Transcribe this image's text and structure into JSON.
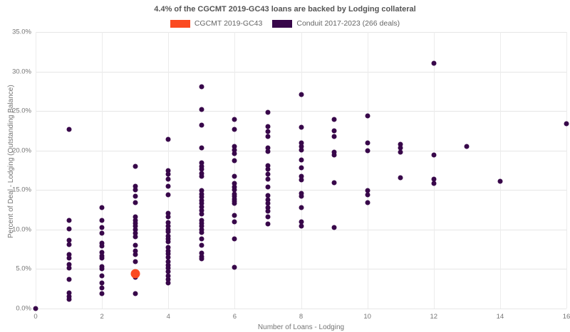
{
  "title": "4.4% of the CGCMT 2019-GC43 loans are backed by Lodging collateral",
  "legend": {
    "items": [
      {
        "label": "CGCMT 2019-GC43",
        "color": "#fb4a21"
      },
      {
        "label": "Conduit 2017-2023 (266 deals)",
        "color": "#38074a"
      }
    ]
  },
  "colors": {
    "highlight_orange": "#fb4a21",
    "conduit_purple": "#38074a",
    "title_text": "#555555",
    "axis_text": "#757575",
    "gridline": "#e6e6e6"
  },
  "chart_data": {
    "type": "scatter",
    "title": "4.4% of the CGCMT 2019-GC43 loans are backed by Lodging collateral",
    "xlabel": "Number of Loans - Lodging",
    "ylabel": "Percent of Deal - Lodging (Outstanding Balance)",
    "xlim": [
      0,
      16
    ],
    "ylim": [
      0,
      35
    ],
    "x_ticks": [
      0,
      2,
      4,
      6,
      8,
      10,
      12,
      14,
      16
    ],
    "x_tick_labels": [
      "0",
      "2",
      "4",
      "6",
      "8",
      "10",
      "12",
      "14",
      "16"
    ],
    "y_ticks": [
      0,
      5,
      10,
      15,
      20,
      25,
      30,
      35
    ],
    "y_tick_labels": [
      "0.0%",
      "5.0%",
      "10.0%",
      "15.0%",
      "20.0%",
      "25.0%",
      "30.0%",
      "35.0%"
    ],
    "grid": true,
    "legend_position": "top-center",
    "series": [
      {
        "name": "Conduit 2017-2023 (266 deals)",
        "color": "#38074a",
        "marker_size": 7,
        "points": [
          [
            0,
            0.0
          ],
          [
            1,
            22.7
          ],
          [
            1,
            11.2
          ],
          [
            1,
            10.1
          ],
          [
            1,
            8.6
          ],
          [
            1,
            8.1
          ],
          [
            1,
            6.8
          ],
          [
            1,
            6.4
          ],
          [
            1,
            5.6
          ],
          [
            1,
            5.1
          ],
          [
            1,
            3.7
          ],
          [
            1,
            2.0
          ],
          [
            1,
            1.5
          ],
          [
            1,
            1.2
          ],
          [
            2,
            12.8
          ],
          [
            2,
            11.2
          ],
          [
            2,
            10.3
          ],
          [
            2,
            9.5
          ],
          [
            2,
            8.3
          ],
          [
            2,
            7.9
          ],
          [
            2,
            7.1
          ],
          [
            2,
            6.7
          ],
          [
            2,
            6.4
          ],
          [
            2,
            5.3
          ],
          [
            2,
            5.0
          ],
          [
            2,
            4.1
          ],
          [
            2,
            3.2
          ],
          [
            2,
            2.6
          ],
          [
            2,
            1.9
          ],
          [
            3,
            18.0
          ],
          [
            3,
            15.5
          ],
          [
            3,
            15.0
          ],
          [
            3,
            14.2
          ],
          [
            3,
            13.4
          ],
          [
            3,
            11.6
          ],
          [
            3,
            11.2
          ],
          [
            3,
            10.8
          ],
          [
            3,
            10.4
          ],
          [
            3,
            10.0
          ],
          [
            3,
            9.5
          ],
          [
            3,
            9.1
          ],
          [
            3,
            8.0
          ],
          [
            3,
            7.3
          ],
          [
            3,
            6.8
          ],
          [
            3,
            5.9
          ],
          [
            3,
            4.0
          ],
          [
            3,
            1.9
          ],
          [
            4,
            21.4
          ],
          [
            4,
            17.5
          ],
          [
            4,
            17.0
          ],
          [
            4,
            16.4
          ],
          [
            4,
            15.5
          ],
          [
            4,
            14.4
          ],
          [
            4,
            12.1
          ],
          [
            4,
            11.6
          ],
          [
            4,
            10.9
          ],
          [
            4,
            10.4
          ],
          [
            4,
            10.0
          ],
          [
            4,
            9.7
          ],
          [
            4,
            9.2
          ],
          [
            4,
            8.8
          ],
          [
            4,
            8.5
          ],
          [
            4,
            7.7
          ],
          [
            4,
            7.3
          ],
          [
            4,
            6.9
          ],
          [
            4,
            6.5
          ],
          [
            4,
            5.9
          ],
          [
            4,
            5.5
          ],
          [
            4,
            5.1
          ],
          [
            4,
            4.7
          ],
          [
            4,
            4.1
          ],
          [
            4,
            3.7
          ],
          [
            4,
            3.2
          ],
          [
            5,
            28.1
          ],
          [
            5,
            25.2
          ],
          [
            5,
            23.2
          ],
          [
            5,
            20.3
          ],
          [
            5,
            18.4
          ],
          [
            5,
            18.0
          ],
          [
            5,
            17.6
          ],
          [
            5,
            17.1
          ],
          [
            5,
            16.7
          ],
          [
            5,
            14.9
          ],
          [
            5,
            14.5
          ],
          [
            5,
            14.1
          ],
          [
            5,
            13.7
          ],
          [
            5,
            13.3
          ],
          [
            5,
            12.9
          ],
          [
            5,
            12.4
          ],
          [
            5,
            12.0
          ],
          [
            5,
            11.2
          ],
          [
            5,
            10.8
          ],
          [
            5,
            10.4
          ],
          [
            5,
            10.0
          ],
          [
            5,
            9.6
          ],
          [
            5,
            8.8
          ],
          [
            5,
            8.0
          ],
          [
            5,
            7.0
          ],
          [
            5,
            6.6
          ],
          [
            5,
            6.3
          ],
          [
            6,
            23.9
          ],
          [
            6,
            22.7
          ],
          [
            6,
            20.5
          ],
          [
            6,
            20.1
          ],
          [
            6,
            19.6
          ],
          [
            6,
            18.7
          ],
          [
            6,
            16.7
          ],
          [
            6,
            15.8
          ],
          [
            6,
            15.4
          ],
          [
            6,
            15.0
          ],
          [
            6,
            14.5
          ],
          [
            6,
            14.2
          ],
          [
            6,
            13.9
          ],
          [
            6,
            13.6
          ],
          [
            6,
            13.3
          ],
          [
            6,
            11.8
          ],
          [
            6,
            11.0
          ],
          [
            6,
            8.8
          ],
          [
            6,
            5.2
          ],
          [
            7,
            24.8
          ],
          [
            7,
            23.0
          ],
          [
            7,
            22.4
          ],
          [
            7,
            21.8
          ],
          [
            7,
            20.3
          ],
          [
            7,
            19.9
          ],
          [
            7,
            18.1
          ],
          [
            7,
            17.6
          ],
          [
            7,
            17.0
          ],
          [
            7,
            16.4
          ],
          [
            7,
            15.4
          ],
          [
            7,
            14.3
          ],
          [
            7,
            13.8
          ],
          [
            7,
            13.3
          ],
          [
            7,
            12.8
          ],
          [
            7,
            12.3
          ],
          [
            7,
            11.6
          ],
          [
            7,
            10.7
          ],
          [
            8,
            27.1
          ],
          [
            8,
            22.9
          ],
          [
            8,
            21.0
          ],
          [
            8,
            20.5
          ],
          [
            8,
            20.1
          ],
          [
            8,
            18.8
          ],
          [
            8,
            17.8
          ],
          [
            8,
            16.7
          ],
          [
            8,
            16.3
          ],
          [
            8,
            14.6
          ],
          [
            8,
            14.2
          ],
          [
            8,
            12.8
          ],
          [
            8,
            11.0
          ],
          [
            8,
            10.4
          ],
          [
            9,
            23.9
          ],
          [
            9,
            22.5
          ],
          [
            9,
            21.8
          ],
          [
            9,
            19.8
          ],
          [
            9,
            19.4
          ],
          [
            9,
            15.9
          ],
          [
            9,
            10.3
          ],
          [
            10,
            24.4
          ],
          [
            10,
            21.0
          ],
          [
            10,
            20.0
          ],
          [
            10,
            14.9
          ],
          [
            10,
            14.4
          ],
          [
            10,
            13.4
          ],
          [
            11,
            20.8
          ],
          [
            11,
            20.3
          ],
          [
            11,
            19.8
          ],
          [
            11,
            16.6
          ],
          [
            12,
            31.0
          ],
          [
            12,
            19.4
          ],
          [
            12,
            16.4
          ],
          [
            12,
            15.8
          ],
          [
            13,
            20.5
          ],
          [
            14,
            16.1
          ],
          [
            16,
            23.4
          ]
        ]
      },
      {
        "name": "CGCMT 2019-GC43",
        "color": "#fb4a21",
        "marker_size": 13,
        "points": [
          [
            3,
            4.4
          ]
        ]
      }
    ]
  }
}
